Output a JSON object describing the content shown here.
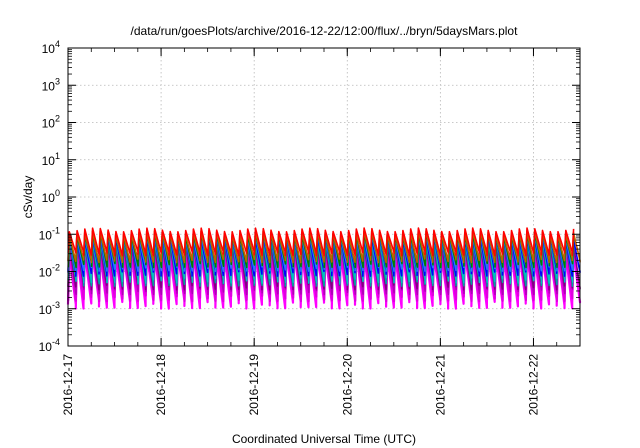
{
  "chart_data": {
    "type": "line",
    "title": "/data/run/goesPlots/archive/2016-12-22/12:00/flux/../bryn/5daysMars.plot",
    "xlabel": "Coordinated Universal Time (UTC)",
    "ylabel": "cSv/day",
    "y_scale": "log",
    "grid": true,
    "ylim": [
      0.0001,
      10000
    ],
    "y_ticks": [
      {
        "exp": "-4",
        "value": 0.0001
      },
      {
        "exp": "-3",
        "value": 0.001
      },
      {
        "exp": "-2",
        "value": 0.01
      },
      {
        "exp": "-1",
        "value": 0.1
      },
      {
        "exp": "0",
        "value": 1
      },
      {
        "exp": "1",
        "value": 10
      },
      {
        "exp": "2",
        "value": 100
      },
      {
        "exp": "3",
        "value": 1000
      },
      {
        "exp": "4",
        "value": 10000
      }
    ],
    "xlim": [
      "2016-12-17T00:00",
      "2016-12-22T12:00"
    ],
    "x_ticks": [
      "2016-12-17",
      "2016-12-18",
      "2016-12-19",
      "2016-12-20",
      "2016-12-21",
      "2016-12-22"
    ],
    "x_tick_values": [
      "2016-12-17T00:00",
      "2016-12-18T00:00",
      "2016-12-19T00:00",
      "2016-12-20T00:00",
      "2016-12-21T00:00",
      "2016-12-22T00:00"
    ],
    "pattern": "sawtooth, about 12 cycles per day; each series jumps up then decays",
    "series": [
      {
        "color": "#ff00ff",
        "peak": 0.03,
        "trough": 0.0013
      },
      {
        "color": "#e000e0",
        "peak": 0.035,
        "trough": 0.002
      },
      {
        "color": "#b000b8",
        "peak": 0.045,
        "trough": 0.003
      },
      {
        "color": "#800080",
        "peak": 0.055,
        "trough": 0.004
      },
      {
        "color": "#00a0a0",
        "peak": 0.07,
        "trough": 0.005
      },
      {
        "color": "#00c0c0",
        "peak": 0.08,
        "trough": 0.006
      },
      {
        "color": "#0000ff",
        "peak": 0.085,
        "trough": 0.009
      },
      {
        "color": "#3070ff",
        "peak": 0.09,
        "trough": 0.012
      },
      {
        "color": "#008000",
        "peak": 0.1,
        "trough": 0.015
      },
      {
        "color": "#c06000",
        "peak": 0.11,
        "trough": 0.02
      },
      {
        "color": "#ff0000",
        "peak": 0.13,
        "trough": 0.03
      }
    ]
  }
}
